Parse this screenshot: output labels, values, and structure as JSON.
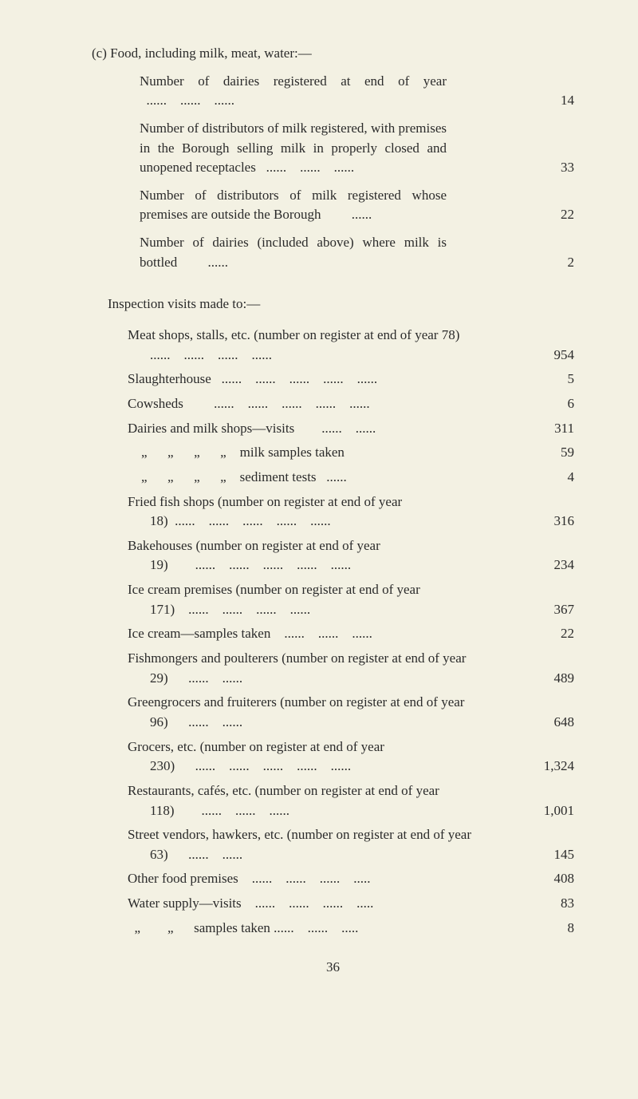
{
  "background_color": "#f3f1e3",
  "text_color": "#2b2b2b",
  "font_family": "Times New Roman",
  "base_fontsize": 17,
  "section_c": {
    "heading": "(c) Food, including milk, meat, water:—",
    "items": [
      {
        "label": "Number of dairies registered at end of year   ......    ......    ......",
        "value": "14"
      },
      {
        "label": "Number of distributors of milk registered, with premises in the Borough selling milk in properly closed and unopened receptacles   ......    ......    ......",
        "value": "33"
      },
      {
        "label": "Number of distributors of milk registered whose premises are outside the Borough         ......",
        "value": "22"
      },
      {
        "label": "Number of dairies (included above) where milk is bottled         ......",
        "value": "2"
      }
    ]
  },
  "inspection": {
    "heading": "Inspection visits made to:—",
    "rows": [
      {
        "label": "Meat shops, stalls, etc. (number on register at end of year 78) ......    ......    ......    ......",
        "value": "954"
      },
      {
        "label": "Slaughterhouse   ......    ......    ......    ......    ......",
        "value": "5"
      },
      {
        "label": "Cowsheds         ......    ......    ......    ......    ......",
        "value": "6"
      },
      {
        "label": "Dairies and milk shops—visits        ......    ......",
        "value": "311"
      },
      {
        "label": "    „      „      „      „    milk samples taken",
        "value": "59"
      },
      {
        "label": "    „      „      „      „    sediment tests   ......",
        "value": "4"
      },
      {
        "label": "Fried fish shops (number on register at end of year 18)  ......    ......    ......    ......    ......",
        "value": "316"
      },
      {
        "label": "Bakehouses (number on register at end of year 19)        ......    ......    ......    ......    ......",
        "value": "234"
      },
      {
        "label": "Ice cream premises (number on register at end of year 171)    ......    ......    ......    ......",
        "value": "367"
      },
      {
        "label": "Ice cream—samples taken    ......    ......    ......",
        "value": "22"
      },
      {
        "label": "Fishmongers and poulterers (number on register at end of year 29)      ......    ......",
        "value": "489"
      },
      {
        "label": "Greengrocers and fruiterers (number on register at end of year 96)      ......    ......",
        "value": "648"
      },
      {
        "label": "Grocers, etc. (number on register at end of year 230)      ......    ......    ......    ......    ......",
        "value": "1,324"
      },
      {
        "label": "Restaurants, cafés, etc. (number on register at end of year 118)        ......    ......    ......",
        "value": "1,001"
      },
      {
        "label": "Street vendors, hawkers, etc. (number on register at end of year 63)      ......    ......",
        "value": "145"
      },
      {
        "label": "Other food premises    ......    ......    ......    .....",
        "value": "408"
      },
      {
        "label": "Water supply—visits    ......    ......    ......    .....",
        "value": "83"
      },
      {
        "label": "  „        „      samples taken ......    ......    .....",
        "value": "8"
      }
    ]
  },
  "page_number": "36"
}
